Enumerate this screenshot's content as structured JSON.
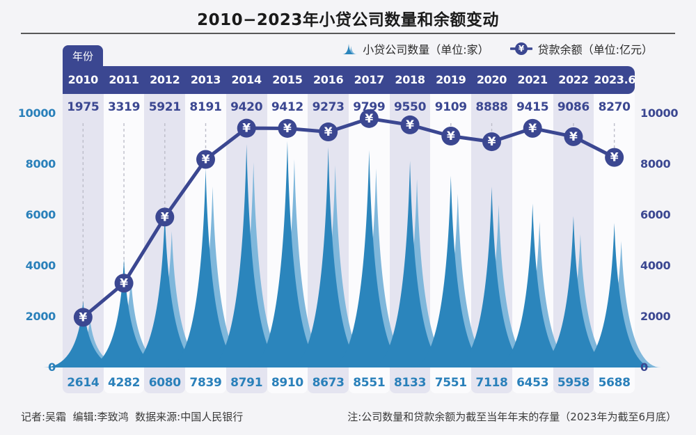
{
  "title": "2010−2023年小贷公司数量和余额变动",
  "year_tab_label": "年份",
  "yen_symbol": "¥",
  "legend": {
    "count_label": "小贷公司数量（单位:家）",
    "balance_label": "贷款余额（单位:亿元）"
  },
  "footer": {
    "credits": "记者:吴霜  编辑:李致鸿  数据来源:中国人民银行",
    "note": "注:公司数量和贷款余额为截至当年年末的存量（2023年为截至6月底）"
  },
  "colors": {
    "navy": "#3b4791",
    "spike_dark": "#2b85bc",
    "spike_light": "#7fb7db",
    "blue_text": "#2a80ba",
    "band_lavender": "#e4e4f0",
    "band_white": "#fbfbfd",
    "dash": "#bcbdc9",
    "marker_text": "#ffffff"
  },
  "chart_data": {
    "type": "combo",
    "subtype": [
      "area-spike",
      "line"
    ],
    "title": "2010−2023年小贷公司数量和余额变动",
    "categories": [
      "2010",
      "2011",
      "2012",
      "2013",
      "2014",
      "2015",
      "2016",
      "2017",
      "2018",
      "2019",
      "2020",
      "2021",
      "2022",
      "2023.6"
    ],
    "series": [
      {
        "name": "小贷公司数量（单位:家）",
        "type": "area-spike",
        "unit": "家",
        "values": [
          2614,
          4282,
          6080,
          7839,
          8791,
          8910,
          8673,
          8551,
          8133,
          7551,
          7118,
          6453,
          5958,
          5688
        ],
        "labels_position": "bottom"
      },
      {
        "name": "贷款余额（单位:亿元）",
        "type": "line",
        "unit": "亿元",
        "values": [
          1975,
          3319,
          5921,
          8191,
          9420,
          9412,
          9273,
          9799,
          9550,
          9109,
          8888,
          9415,
          9086,
          8270
        ],
        "labels_position": "top"
      }
    ],
    "ylim": [
      0,
      10000
    ],
    "yticks": [
      0,
      2000,
      4000,
      6000,
      8000,
      10000
    ],
    "dual_axis": true,
    "grid": false,
    "legend_position": "top-right"
  }
}
